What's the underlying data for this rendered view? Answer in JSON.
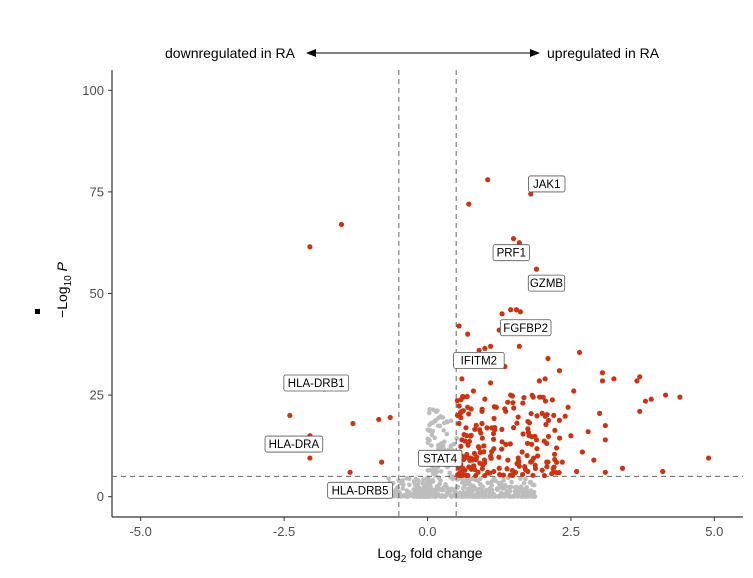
{
  "chart_data": {
    "type": "scatter",
    "title": "",
    "xlabel": "Log2 fold change",
    "ylabel": "−Log10 P",
    "xlim": [
      -5.5,
      5.5
    ],
    "ylim": [
      -5,
      105
    ],
    "xticks": [
      "-5.0",
      "-2.5",
      "0.0",
      "2.5",
      "5.0"
    ],
    "yticks": [
      "0",
      "25",
      "50",
      "75",
      "100"
    ],
    "fc_cutoffs": [
      -0.5,
      0.5
    ],
    "p_cutoff": 5,
    "direction_left": "downregulated in RA",
    "direction_right": "upregulated in RA",
    "colors": {
      "significant": "#cc3311",
      "nonsignificant": "#bdbdbd",
      "cutoff_line": "#666666"
    },
    "significant_points": [
      [
        1.05,
        78
      ],
      [
        1.8,
        74.5
      ],
      [
        0.72,
        72
      ],
      [
        1.5,
        63.5
      ],
      [
        1.6,
        62.5
      ],
      [
        1.9,
        56
      ],
      [
        1.3,
        45
      ],
      [
        1.45,
        46
      ],
      [
        1.55,
        46
      ],
      [
        1.62,
        45.5
      ],
      [
        0.55,
        42
      ],
      [
        1.0,
        36.5
      ],
      [
        1.1,
        37
      ],
      [
        1.6,
        37
      ],
      [
        2.1,
        34
      ],
      [
        2.65,
        35.5
      ],
      [
        2.3,
        31
      ],
      [
        2.05,
        29
      ],
      [
        3.05,
        30.5
      ],
      [
        3.7,
        29.5
      ],
      [
        3.05,
        28.5
      ],
      [
        3.25,
        29
      ],
      [
        3.65,
        28.5
      ],
      [
        1.95,
        28.5
      ],
      [
        4.15,
        25
      ],
      [
        4.4,
        24.5
      ],
      [
        3.9,
        24
      ],
      [
        3.8,
        23.5
      ],
      [
        3.7,
        21
      ],
      [
        2.55,
        26
      ],
      [
        2.45,
        22
      ],
      [
        2.0,
        20.5
      ],
      [
        2.05,
        19.8
      ],
      [
        2.2,
        20
      ],
      [
        2.4,
        19.8
      ],
      [
        2.3,
        18.8
      ],
      [
        1.75,
        18.5
      ],
      [
        1.5,
        17
      ],
      [
        2.8,
        16
      ],
      [
        3.1,
        17.5
      ],
      [
        3.1,
        14
      ],
      [
        4.9,
        9.5
      ],
      [
        4.1,
        6.2
      ],
      [
        3.1,
        6
      ],
      [
        2.9,
        9
      ],
      [
        2.35,
        8.5
      ],
      [
        2.1,
        8.5
      ],
      [
        1.85,
        9.5
      ],
      [
        1.65,
        11
      ],
      [
        1.3,
        13.5
      ],
      [
        1.15,
        15.5
      ],
      [
        0.95,
        18
      ],
      [
        0.7,
        22
      ],
      [
        0.8,
        26
      ],
      [
        0.6,
        29
      ],
      [
        1.1,
        28
      ],
      [
        1.35,
        32
      ],
      [
        0.85,
        33
      ],
      [
        1.0,
        24
      ],
      [
        1.2,
        22
      ],
      [
        0.75,
        15
      ],
      [
        0.9,
        12
      ],
      [
        0.6,
        10
      ],
      [
        1.4,
        9
      ],
      [
        1.6,
        7.5
      ],
      [
        1.25,
        7
      ],
      [
        0.8,
        7.5
      ],
      [
        1.05,
        6
      ],
      [
        0.65,
        6.5
      ],
      [
        1.75,
        6.2
      ],
      [
        2.0,
        6.5
      ],
      [
        2.6,
        6.2
      ],
      [
        3.4,
        7
      ],
      [
        2.25,
        12
      ],
      [
        2.7,
        11
      ],
      [
        0.95,
        21
      ],
      [
        1.45,
        25
      ],
      [
        0.55,
        18
      ],
      [
        0.6,
        14
      ],
      [
        0.58,
        8
      ],
      [
        1.1,
        10
      ],
      [
        1.9,
        14
      ],
      [
        2.5,
        15
      ],
      [
        3.0,
        20.5
      ],
      [
        0.7,
        40
      ],
      [
        0.9,
        36
      ],
      [
        1.25,
        41
      ],
      [
        -1.5,
        67
      ],
      [
        -2.05,
        61.5
      ],
      [
        -1.8,
        26.5
      ],
      [
        -2.4,
        20
      ],
      [
        -1.3,
        18
      ],
      [
        -0.85,
        19
      ],
      [
        -0.65,
        19.5
      ],
      [
        -2.05,
        15
      ],
      [
        -2.05,
        9.5
      ],
      [
        -0.8,
        8.5
      ],
      [
        -1.35,
        6
      ]
    ],
    "labels": [
      {
        "gene": "JAK1",
        "x": 1.8,
        "y": 74.5
      },
      {
        "gene": "PRF1",
        "x": 1.6,
        "y": 62.5
      },
      {
        "gene": "GZMB",
        "x": 1.9,
        "y": 56
      },
      {
        "gene": "FGFBP2",
        "x": 1.45,
        "y": 46
      },
      {
        "gene": "IFITM2",
        "x": 1.0,
        "y": 36.5
      },
      {
        "gene": "HLA-DRB1",
        "x": -1.8,
        "y": 26.5
      },
      {
        "gene": "HLA-DRA",
        "x": -2.05,
        "y": 9.5
      },
      {
        "gene": "STAT4",
        "x": 0.5,
        "y": 6
      },
      {
        "gene": "HLA-DRB5",
        "x": -1.35,
        "y": 6
      }
    ]
  }
}
